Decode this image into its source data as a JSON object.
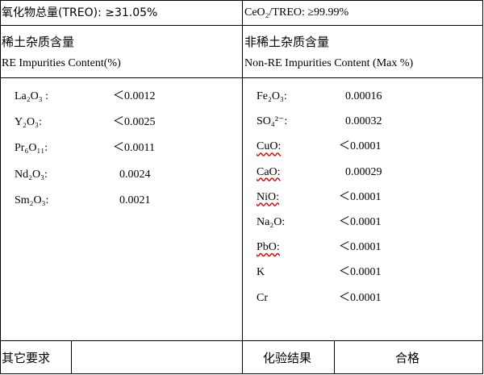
{
  "header": {
    "left": "氧化物总量(TREO): ≥31.05%",
    "right": "CeO₂/TREO: ≥99.99%"
  },
  "re_impurities": {
    "title_cn": "稀土杂质含量",
    "title_en": "RE Impurities Content(%)",
    "items": [
      {
        "name": "La₂O₃ :",
        "value": "＜0.0012"
      },
      {
        "name": "Y₂O₃:",
        "value": "＜0.0025"
      },
      {
        "name": "Pr₆O₁₁:",
        "value": "＜0.0011"
      },
      {
        "name": "Nd₂O₃:",
        "value": "0.0024"
      },
      {
        "name": "Sm₂O₃:",
        "value": "0.0021"
      }
    ]
  },
  "non_re_impurities": {
    "title_cn": "非稀土杂质含量",
    "title_en": "Non-RE Impurities Content (Max %)",
    "items": [
      {
        "name": "Fe₂O₃:",
        "value": "0.00016"
      },
      {
        "name": "SO₄²⁻:",
        "value": "0.00032"
      },
      {
        "name": "CuO:",
        "value": "＜0.0001"
      },
      {
        "name": "CaO:",
        "value": "0.00029"
      },
      {
        "name": "NiO:",
        "value": "＜0.0001"
      },
      {
        "name": "Na₂O:",
        "value": "＜0.0001"
      },
      {
        "name": "PbO:",
        "value": "＜0.0001"
      },
      {
        "name": "K",
        "value": "＜0.0001"
      },
      {
        "name": "Cr",
        "value": "＜0.0001"
      }
    ]
  },
  "footer": {
    "other_requirements": "其它要求",
    "test_result_label": "化验结果",
    "test_result": "合格"
  }
}
